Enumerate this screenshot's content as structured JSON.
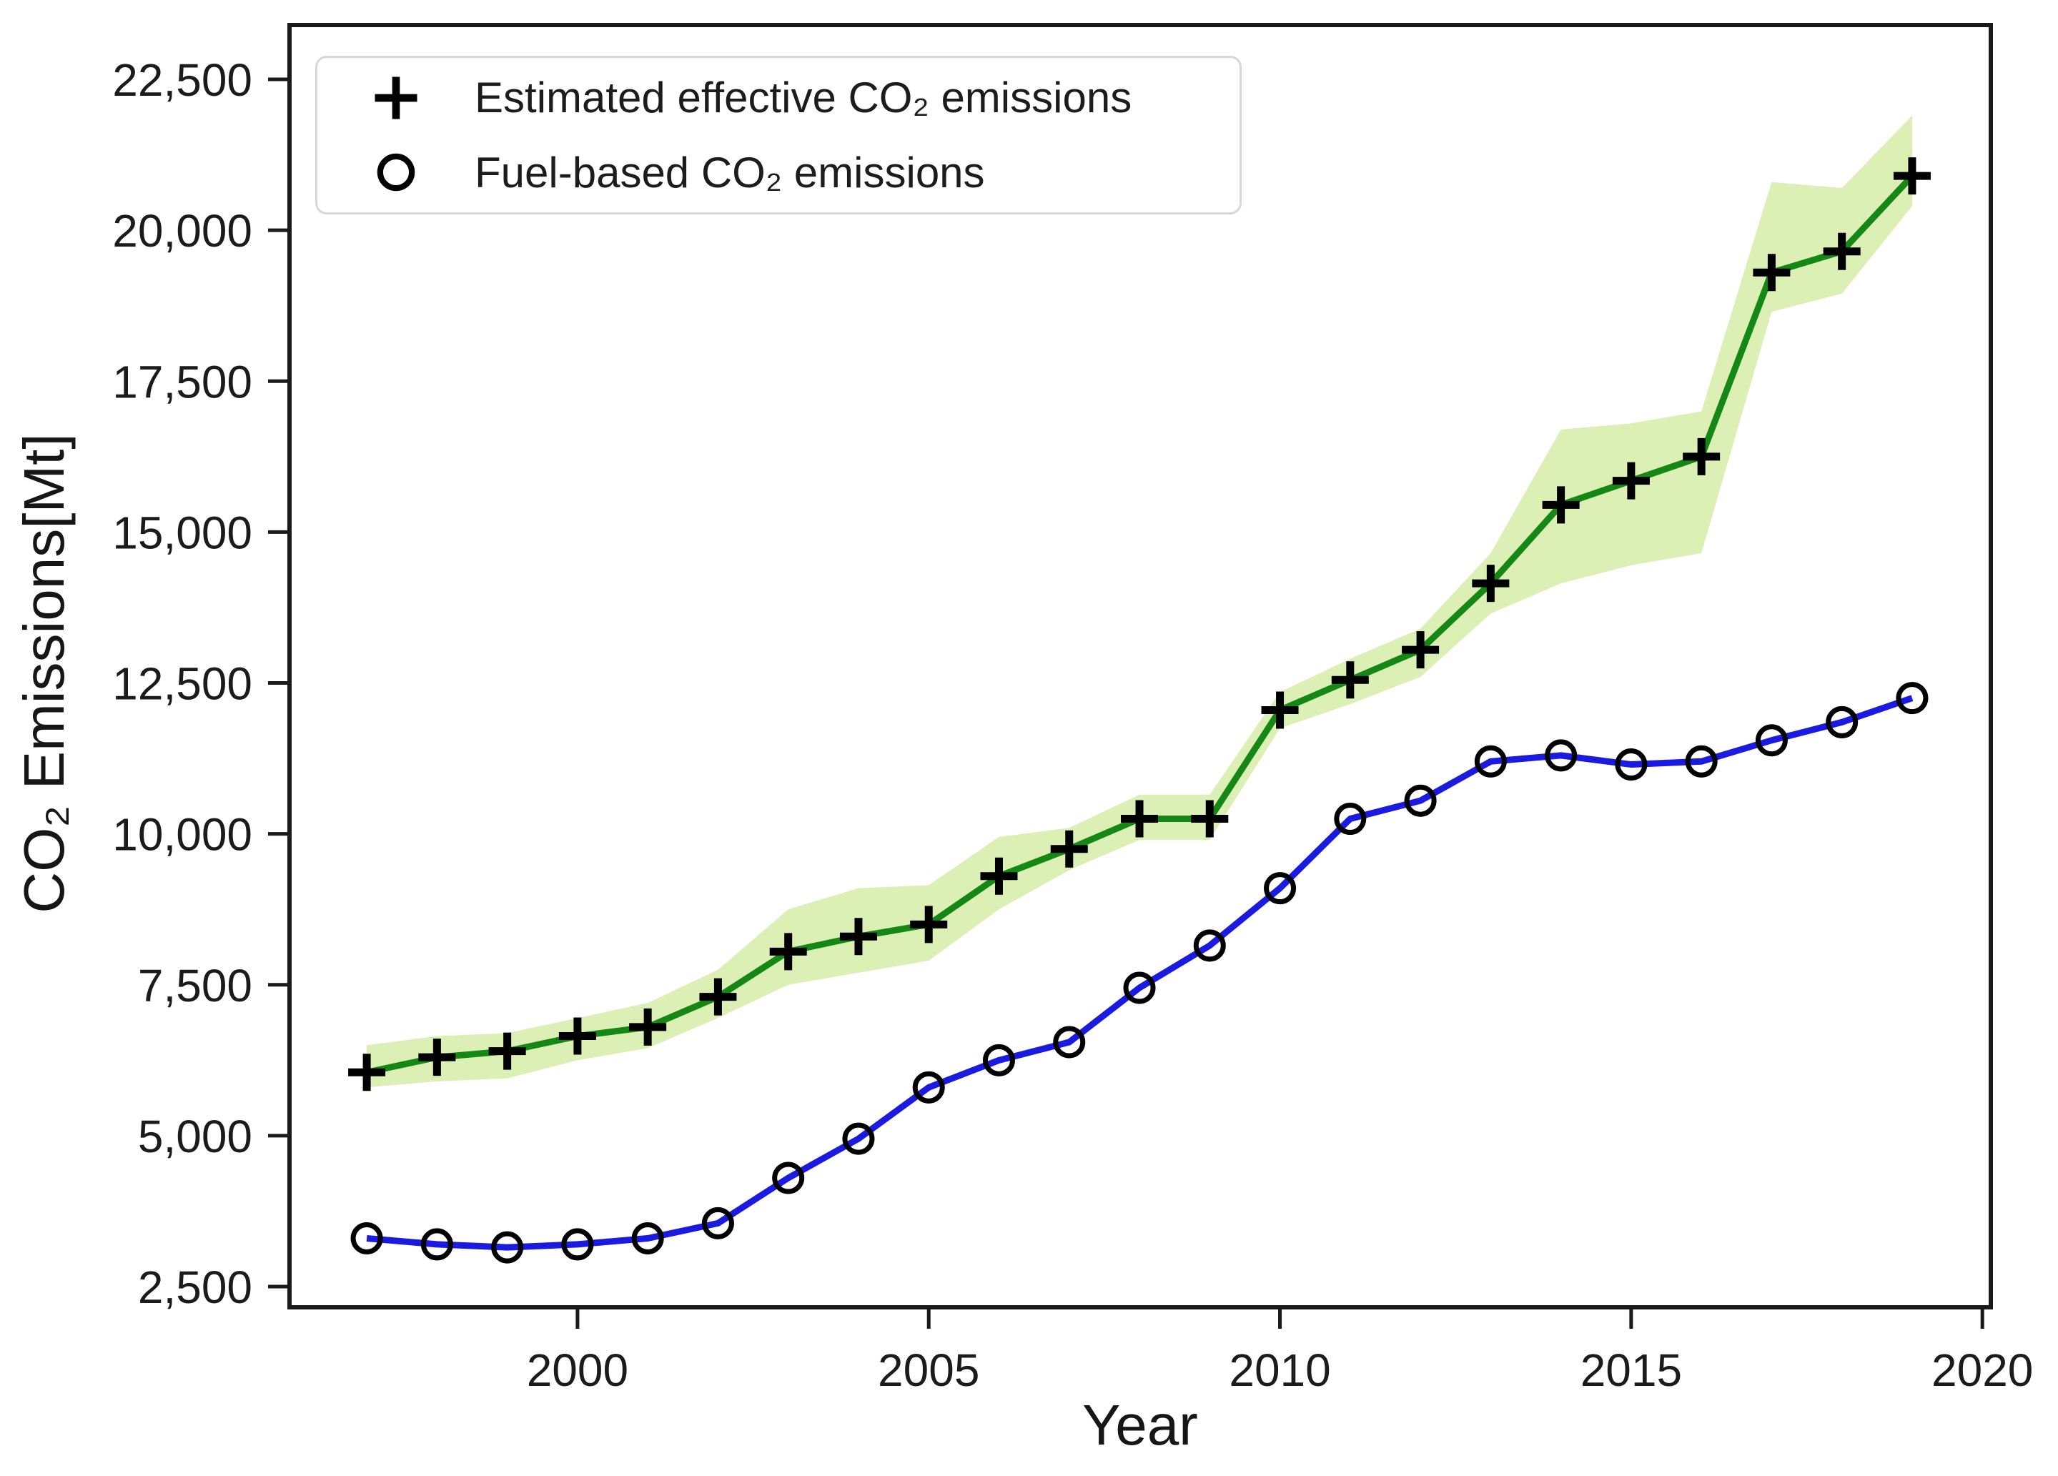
{
  "page": {
    "background": "#ffffff"
  },
  "chart_data": {
    "type": "line",
    "title": "",
    "xlabel": "Year",
    "ylabel": "CO₂ Emissions[Mt]",
    "x": [
      1997,
      1998,
      1999,
      2000,
      2001,
      2002,
      2003,
      2004,
      2005,
      2006,
      2007,
      2008,
      2009,
      2010,
      2011,
      2012,
      2013,
      2014,
      2015,
      2016,
      2017,
      2018,
      2019
    ],
    "series": [
      {
        "name": "estimated-effective-co2",
        "label": "Estimated effective CO₂ emissions",
        "marker": "plus",
        "color": "#148714",
        "values": [
          6050,
          6300,
          6400,
          6650,
          6800,
          7300,
          8050,
          8300,
          8500,
          9300,
          9750,
          10250,
          10250,
          12050,
          12550,
          13050,
          14150,
          15450,
          15850,
          16250,
          19300,
          19650,
          20900
        ]
      },
      {
        "name": "fuel-based-co2",
        "label": "Fuel-based CO₂ emissions",
        "marker": "circle",
        "color": "#1a1ae0",
        "values": [
          3300,
          3200,
          3150,
          3200,
          3300,
          3550,
          4300,
          4950,
          5800,
          6250,
          6550,
          7450,
          8150,
          9100,
          10250,
          10550,
          11200,
          11300,
          11150,
          11200,
          11550,
          11850,
          12250
        ]
      }
    ],
    "band": {
      "series": "estimated-effective-co2",
      "color": "#dcefb5",
      "upper": [
        6500,
        6650,
        6700,
        6950,
        7200,
        7750,
        8750,
        9100,
        9150,
        9950,
        10100,
        10650,
        10650,
        12350,
        12900,
        13400,
        14650,
        16700,
        16800,
        17000,
        20800,
        20700,
        21900
      ],
      "lower": [
        5800,
        5900,
        5950,
        6250,
        6450,
        6950,
        7500,
        7700,
        7900,
        8750,
        9400,
        9900,
        9900,
        11750,
        12150,
        12600,
        13650,
        14150,
        14450,
        14650,
        18650,
        18950,
        20400
      ]
    },
    "marker_color": "#000000",
    "axis_color": "#1a1a1a",
    "text_color": "#1b1b1b",
    "xlim": [
      1995.9,
      2020.12
    ],
    "ylim": [
      2157,
      23400
    ],
    "x_ticks": [
      {
        "value": 2000,
        "label": "2000"
      },
      {
        "value": 2005,
        "label": "2005"
      },
      {
        "value": 2010,
        "label": "2010"
      },
      {
        "value": 2015,
        "label": "2015"
      },
      {
        "value": 2020,
        "label": "2020"
      }
    ],
    "y_ticks": [
      {
        "value": 2500,
        "label": "2,500"
      },
      {
        "value": 5000,
        "label": "5,000"
      },
      {
        "value": 7500,
        "label": "7,500"
      },
      {
        "value": 10000,
        "label": "10,000"
      },
      {
        "value": 12500,
        "label": "12,500"
      },
      {
        "value": 15000,
        "label": "15,000"
      },
      {
        "value": 17500,
        "label": "17,500"
      },
      {
        "value": 20000,
        "label": "20,000"
      },
      {
        "value": 22500,
        "label": "22,500"
      }
    ],
    "grid": false,
    "legend": {
      "position": "upper left"
    }
  }
}
